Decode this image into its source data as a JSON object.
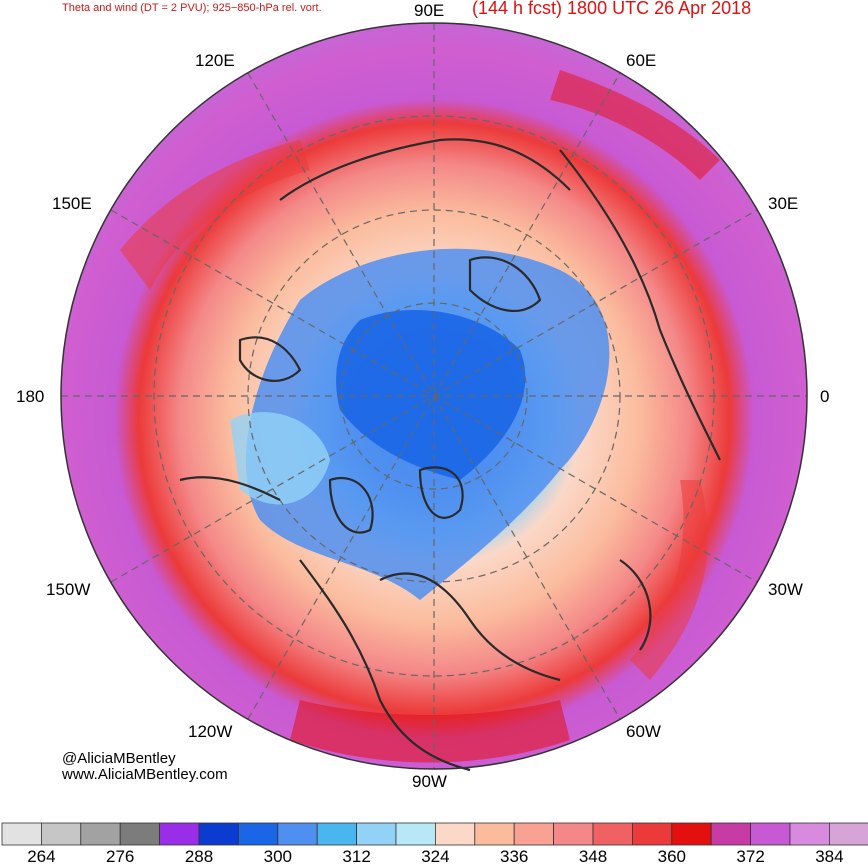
{
  "header": {
    "left_title": "Theta and wind (DT = 2 PVU); 925−850-hPa rel. vort.",
    "right_title": "(144 h fcst) 1800 UTC 26 Apr 2018"
  },
  "map": {
    "projection": "north-polar-stereographic",
    "longitude_labels": [
      {
        "text": "90E",
        "pos": "top"
      },
      {
        "text": "60E",
        "pos": "top-right"
      },
      {
        "text": "30E",
        "pos": "upper-right"
      },
      {
        "text": "0",
        "pos": "right"
      },
      {
        "text": "30W",
        "pos": "lower-right"
      },
      {
        "text": "60W",
        "pos": "bottom-right"
      },
      {
        "text": "90W",
        "pos": "bottom"
      },
      {
        "text": "120W",
        "pos": "bottom-left"
      },
      {
        "text": "150W",
        "pos": "lower-left"
      },
      {
        "text": "180",
        "pos": "left"
      },
      {
        "text": "150E",
        "pos": "upper-left"
      },
      {
        "text": "120E",
        "pos": "top-left"
      }
    ]
  },
  "credits": {
    "handle": "@AliciaMBentley",
    "website": "www.AliciaMBentley.com"
  },
  "colorbar": {
    "colors": [
      "#e2e2e2",
      "#c6c6c6",
      "#a2a2a2",
      "#7c7c7c",
      "#9a2ee8",
      "#0c3bd0",
      "#1b66e6",
      "#4f8ff0",
      "#4ab6f0",
      "#92d2f6",
      "#b6e8f6",
      "#fbd8c8",
      "#fbbc9e",
      "#f9a294",
      "#f48888",
      "#f06262",
      "#ec3a3a",
      "#e41010",
      "#c63ca4",
      "#c75ad4",
      "#d88ade",
      "#d6a4d6"
    ],
    "tick_labels": [
      "264",
      "276",
      "288",
      "300",
      "312",
      "324",
      "336",
      "348",
      "360",
      "372",
      "384"
    ]
  }
}
